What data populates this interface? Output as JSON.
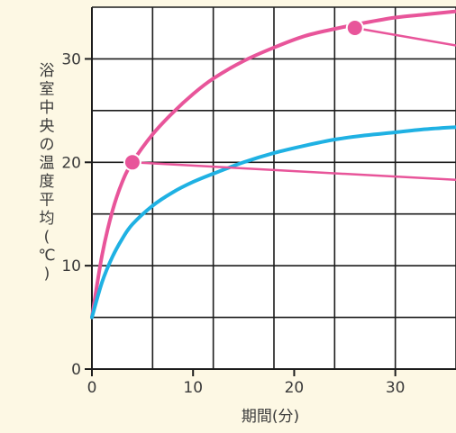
{
  "chart_data": {
    "type": "line",
    "xlabel": "期間(分)",
    "ylabel": "浴室中央の温度平均(℃)",
    "xlim": [
      0,
      36
    ],
    "ylim": [
      0,
      35
    ],
    "x_tick_labels": [
      "0",
      "10",
      "20",
      "30"
    ],
    "y_tick_labels": [
      "0",
      "10",
      "20",
      "30"
    ],
    "grid": true,
    "series": [
      {
        "color": "#e8559a",
        "x": [
          0,
          1,
          2,
          3,
          4,
          6,
          8,
          10,
          12,
          15,
          18,
          21,
          24,
          27,
          30,
          33,
          36
        ],
        "y": [
          5,
          11,
          15.2,
          18.1,
          20,
          22.7,
          24.8,
          26.6,
          28.1,
          29.8,
          31.1,
          32.2,
          32.9,
          33.5,
          34.0,
          34.3,
          34.6
        ]
      },
      {
        "color": "#1fb1e3",
        "x": [
          0,
          1,
          2,
          3,
          4,
          6,
          8,
          10,
          12,
          15,
          18,
          21,
          24,
          27,
          30,
          33,
          36
        ],
        "y": [
          5,
          8.4,
          10.8,
          12.6,
          14.0,
          15.8,
          17.1,
          18.1,
          18.9,
          20.0,
          20.9,
          21.6,
          22.2,
          22.6,
          22.9,
          23.2,
          23.4
        ]
      }
    ],
    "highlight_points": [
      {
        "x": 4,
        "y": 20
      },
      {
        "x": 26,
        "y": 33
      }
    ],
    "callout_color": "#e8559a"
  }
}
